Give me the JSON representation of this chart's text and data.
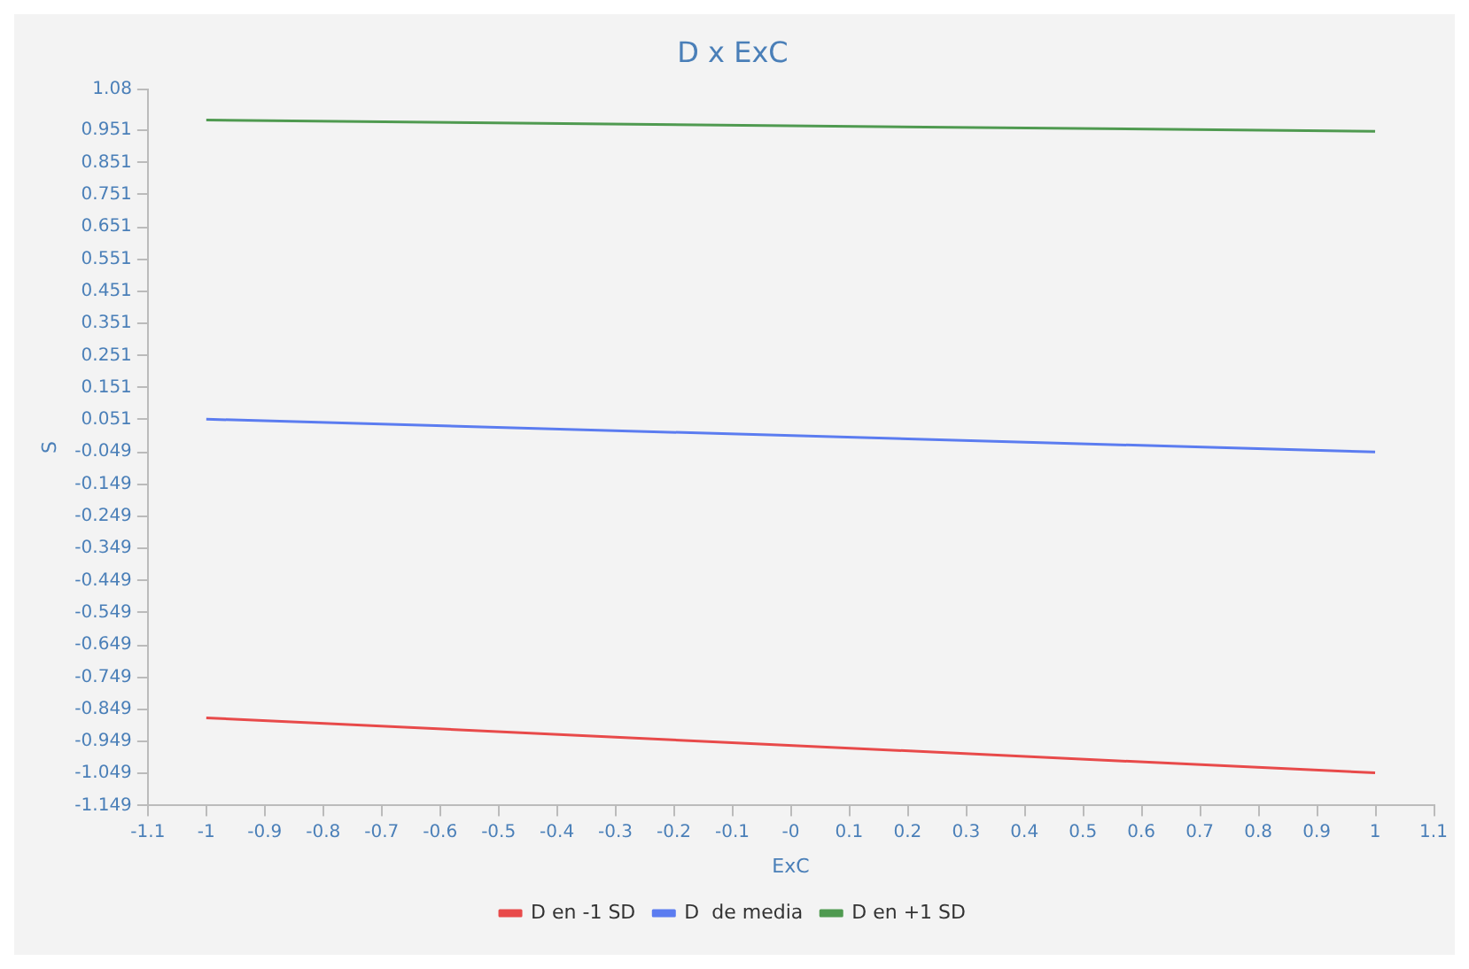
{
  "chart_data": {
    "type": "line",
    "title": "D x ExC",
    "xlabel": "ExC",
    "ylabel": "S",
    "x": [
      -1,
      1
    ],
    "series": [
      {
        "name": "D en -1 SD",
        "color": "#e84a4a",
        "values": [
          -0.876,
          -1.047
        ]
      },
      {
        "name": "D  de media",
        "color": "#5b7cf0",
        "values": [
          0.053,
          -0.049
        ]
      },
      {
        "name": "D en +1 SD",
        "color": "#4f9a50",
        "values": [
          0.983,
          0.948
        ]
      }
    ],
    "xlim": [
      -1.1,
      1.1
    ],
    "xticks": [
      -1.1,
      -1,
      -0.9,
      -0.8,
      -0.7,
      -0.6,
      -0.5,
      -0.4,
      -0.3,
      -0.2,
      -0.1,
      {
        "value": 0,
        "label": "-0"
      },
      0.1,
      0.2,
      0.3,
      0.4,
      0.5,
      0.6,
      0.7,
      0.8,
      0.9,
      1,
      1.1
    ],
    "ylim": [
      -1.149,
      1.08
    ],
    "yticks": [
      -1.149,
      -1.049,
      -0.949,
      -0.849,
      -0.749,
      -0.649,
      -0.549,
      -0.449,
      -0.349,
      -0.249,
      -0.149,
      -0.049,
      0.051,
      0.151,
      0.251,
      0.351,
      0.451,
      0.551,
      0.651,
      0.751,
      0.851,
      0.951,
      1.08
    ],
    "grid": false,
    "legend": "bottom",
    "marker": "none",
    "line_style": "solid"
  }
}
